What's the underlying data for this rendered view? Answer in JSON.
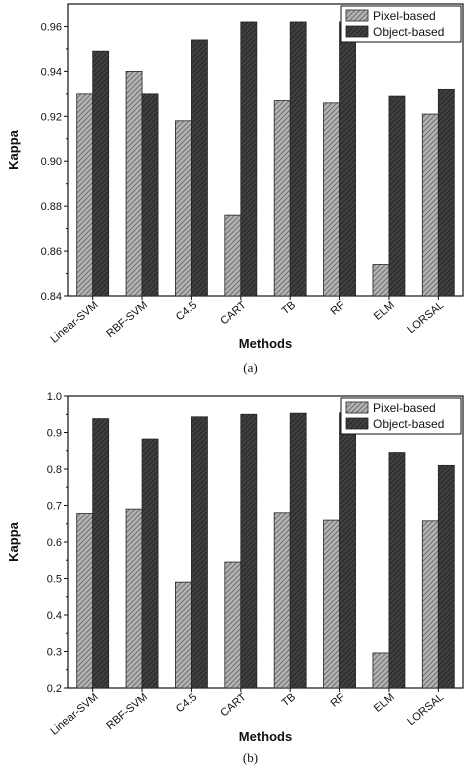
{
  "chart_data": [
    {
      "type": "bar",
      "categories": [
        "Linear-SVM",
        "RBF-SVM",
        "C4.5",
        "CART",
        "TB",
        "RF",
        "ELM",
        "LORSAL"
      ],
      "series": [
        {
          "name": "Pixel-based",
          "values": [
            0.93,
            0.94,
            0.918,
            0.876,
            0.927,
            0.926,
            0.854,
            0.921
          ]
        },
        {
          "name": "Object-based",
          "values": [
            0.949,
            0.93,
            0.954,
            0.962,
            0.962,
            0.962,
            0.929,
            0.932
          ]
        }
      ],
      "xlabel": "Methods",
      "ylabel": "Kappa",
      "ylim": [
        0.84,
        0.97
      ],
      "yticks": [
        "0.84",
        "0.86",
        "0.88",
        "0.90",
        "0.92",
        "0.94",
        "0.96"
      ],
      "legend_position": "top-right",
      "caption": "(a)"
    },
    {
      "type": "bar",
      "categories": [
        "Linear-SVM",
        "RBF-SVM",
        "C4.5",
        "CART",
        "TB",
        "RF",
        "ELM",
        "LORSAL"
      ],
      "series": [
        {
          "name": "Pixel-based",
          "values": [
            0.678,
            0.69,
            0.49,
            0.545,
            0.68,
            0.66,
            0.296,
            0.658
          ]
        },
        {
          "name": "Object-based",
          "values": [
            0.938,
            0.882,
            0.943,
            0.95,
            0.953,
            0.954,
            0.845,
            0.81
          ]
        }
      ],
      "xlabel": "Methods",
      "ylabel": "Kappa",
      "ylim": [
        0.2,
        1.0
      ],
      "yticks": [
        "0.2",
        "0.3",
        "0.4",
        "0.5",
        "0.6",
        "0.7",
        "0.8",
        "0.9",
        "1.0"
      ],
      "legend_position": "top-right",
      "caption": "(b)"
    }
  ],
  "colors": {
    "pixel_fill": "#b4b4b4",
    "pixel_hatch": "#6e6e6e",
    "object_fill": "#404040",
    "object_hatch": "#262626",
    "axis": "#111111"
  }
}
